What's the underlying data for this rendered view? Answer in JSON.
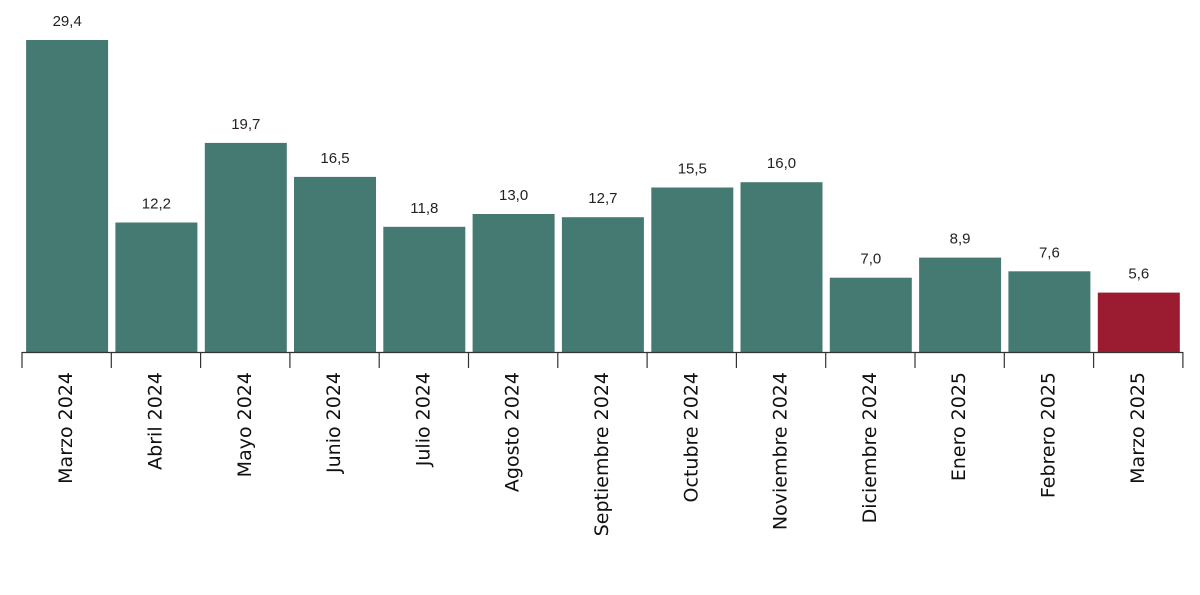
{
  "chart_data": {
    "type": "bar",
    "categories": [
      "Marzo 2024",
      "Abril 2024",
      "Mayo 2024",
      "Junio 2024",
      "Julio 2024",
      "Agosto 2024",
      "Septiembre 2024",
      "Octubre 2024",
      "Noviembre 2024",
      "Diciembre 2024",
      "Enero 2025",
      "Febrero 2025",
      "Marzo 2025"
    ],
    "values": [
      29.4,
      12.2,
      19.7,
      16.5,
      11.8,
      13.0,
      12.7,
      15.5,
      16.0,
      7.0,
      8.9,
      7.6,
      5.6
    ],
    "value_labels": [
      "29,4",
      "12,2",
      "19,7",
      "16,5",
      "11,8",
      "13,0",
      "12,7",
      "15,5",
      "16,0",
      "7,0",
      "8,9",
      "7,6",
      "5,6"
    ],
    "title": "",
    "xlabel": "",
    "ylabel": "",
    "ylim": [
      0,
      29.4
    ],
    "grid": false,
    "legend": "none",
    "colors": {
      "default": "#457a72",
      "highlight": "#9b1b30",
      "axis": "#333333",
      "label": "#222222"
    },
    "highlight_index": 12
  }
}
